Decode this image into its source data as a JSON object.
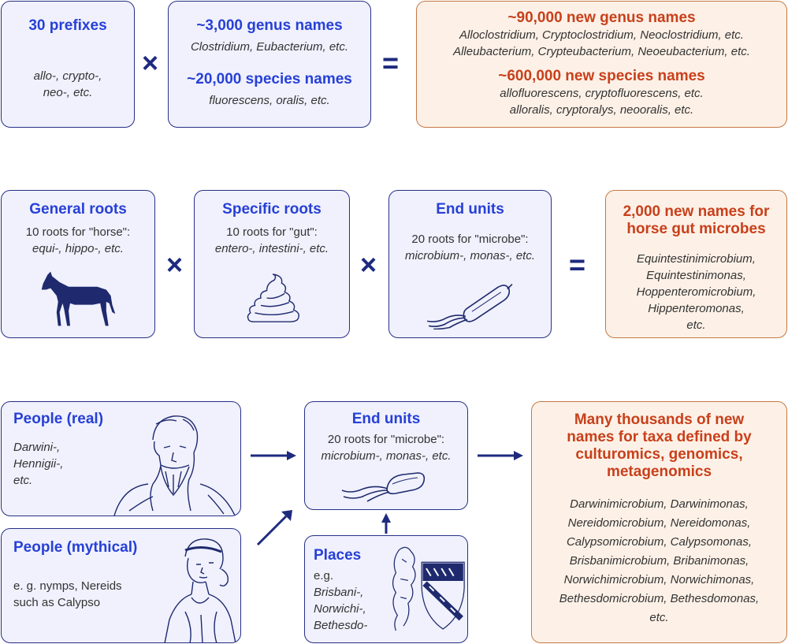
{
  "row1": {
    "prefixes": {
      "title": "30 prefixes",
      "line1": "allo-, crypto-,",
      "line2": "neo-, etc."
    },
    "genus": {
      "title": "~3,000 genus names",
      "examples": "Clostridium, Eubacterium, etc."
    },
    "species": {
      "title": "~20,000 species names",
      "examples": "fluorescens, oralis, etc."
    },
    "times": "×",
    "equals": "=",
    "result": {
      "genus_title": "~90,000 new genus names",
      "genus_ex1": "Alloclostridium, Cryptoclostridium, Neoclostridium, etc.",
      "genus_ex2": "Alleubacterium, Crypteubacterium, Neoeubacterium, etc.",
      "species_title": "~600,000 new species names",
      "species_ex1": "allofluorescens, cryptofluorescens, etc.",
      "species_ex2": "alloralis, cryptoralys, neooralis, etc."
    }
  },
  "row2": {
    "general": {
      "title": "General roots",
      "line1": "10 roots for \"horse\":",
      "line2": "equi-, hippo-, etc."
    },
    "specific": {
      "title": "Specific roots",
      "line1": "10 roots for \"gut\":",
      "line2": "entero-, intestini-, etc."
    },
    "end": {
      "title": "End units",
      "line1": "20 roots for \"microbe\":",
      "line2": "microbium-, monas-, etc."
    },
    "times": "×",
    "equals": "=",
    "result": {
      "title1": "2,000 new names for",
      "title2": "horse gut microbes",
      "names": [
        "Equintestinimicrobium,",
        "Equintestinimonas,",
        "Hoppenteromicrobium,",
        "Hippenteromonas,",
        "etc."
      ]
    }
  },
  "row3": {
    "people_real": {
      "title": "People (real)",
      "lines": [
        "Darwini-,",
        "Hennigii-,",
        "etc."
      ]
    },
    "people_myth": {
      "title": "People (mythical)",
      "line1": "e. g. nymps, Nereids",
      "line2": "such as Calypso"
    },
    "end": {
      "title": "End units",
      "line1": "20 roots for \"microbe\":",
      "line2": "microbium-, monas-, etc."
    },
    "places": {
      "title": "Places",
      "line1": "e.g.",
      "lines": [
        "Brisbani-,",
        "Norwichi-,",
        "Bethesdo-"
      ]
    },
    "result": {
      "title": [
        "Many thousands of new",
        "names for taxa defined by",
        "culturomics, genomics,",
        "metagenomics"
      ],
      "names": [
        "Darwinimicrobium, Darwinimonas,",
        "Nereidomicrobium, Nereidomonas,",
        "Calypsomicrobium, Calypsomonas,",
        "Brisbanimicrobium, Bribanimonas,",
        "Norwichimicrobium, Norwichimonas,",
        "Bethesdomicrobium, Bethesdomonas,",
        "etc."
      ]
    }
  },
  "colors": {
    "title_blue": "#2740d6",
    "title_orange": "#c8401b",
    "box_border_blue": "#272f87",
    "box_border_orange": "#c57945",
    "operator": "#1d2a7e"
  }
}
